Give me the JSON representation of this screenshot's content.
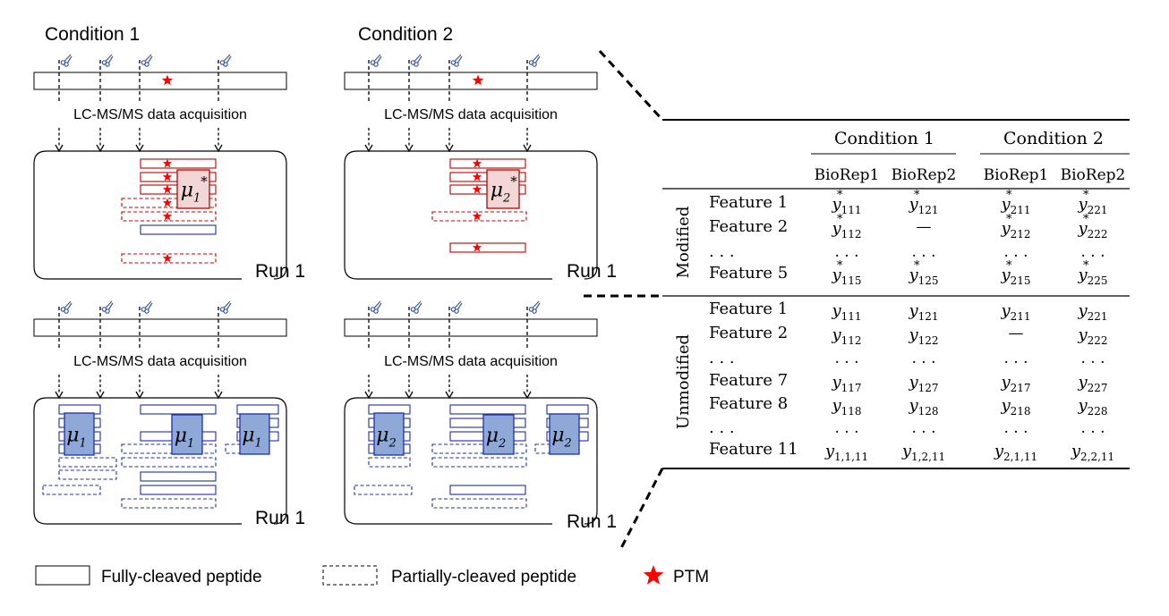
{
  "panels": {
    "cond1_top": {
      "title": "Condition 1",
      "acq": "LC-MS/MS data acquisition",
      "run": "Run 1",
      "mu": "μ",
      "sub": "1",
      "star": "*"
    },
    "cond2_top": {
      "title": "Condition 2",
      "acq": "LC-MS/MS data acquisition",
      "run": "Run 1",
      "mu": "μ",
      "sub": "2",
      "star": "*"
    },
    "cond1_bot": {
      "acq": "LC-MS/MS data acquisition",
      "run": "Run 1",
      "mu": "μ",
      "sub": "1"
    },
    "cond2_bot": {
      "acq": "LC-MS/MS data acquisition",
      "run": "Run 1",
      "mu": "μ",
      "sub": "2"
    }
  },
  "table": {
    "conditions": [
      "Condition 1",
      "Condition 2"
    ],
    "bioreps": [
      "BioRep1",
      "BioRep2",
      "BioRep1",
      "BioRep2"
    ],
    "groups": [
      {
        "label": "Modified",
        "rows": [
          {
            "feature": "Feature 1",
            "cells": [
              {
                "b": "y",
                "s": "111",
                "st": "*"
              },
              {
                "b": "y",
                "s": "121",
                "st": "*"
              },
              {
                "b": "y",
                "s": "211",
                "st": "*"
              },
              {
                "b": "y",
                "s": "221",
                "st": "*"
              }
            ]
          },
          {
            "feature": "Feature 2",
            "cells": [
              {
                "b": "y",
                "s": "112",
                "st": "*"
              },
              {
                "t": "—"
              },
              {
                "b": "y",
                "s": "212",
                "st": "*"
              },
              {
                "b": "y",
                "s": "222",
                "st": "*"
              }
            ]
          },
          {
            "feature": ". . .",
            "cells": [
              {
                "t": ". . ."
              },
              {
                "t": ". . ."
              },
              {
                "t": ". . ."
              },
              {
                "t": ". . ."
              }
            ]
          },
          {
            "feature": "Feature 5",
            "cells": [
              {
                "b": "y",
                "s": "115",
                "st": "*"
              },
              {
                "b": "y",
                "s": "125",
                "st": "*"
              },
              {
                "b": "y",
                "s": "215",
                "st": "*"
              },
              {
                "b": "y",
                "s": "225",
                "st": "*"
              }
            ]
          }
        ]
      },
      {
        "label": "Unmodified",
        "rows": [
          {
            "feature": "Feature 1",
            "cells": [
              {
                "b": "y",
                "s": "111"
              },
              {
                "b": "y",
                "s": "121"
              },
              {
                "b": "y",
                "s": "211"
              },
              {
                "b": "y",
                "s": "221"
              }
            ]
          },
          {
            "feature": "Feature 2",
            "cells": [
              {
                "b": "y",
                "s": "112"
              },
              {
                "b": "y",
                "s": "122"
              },
              {
                "t": "—"
              },
              {
                "b": "y",
                "s": "222"
              }
            ]
          },
          {
            "feature": ". . .",
            "cells": [
              {
                "t": ". . ."
              },
              {
                "t": ". . ."
              },
              {
                "t": ". . ."
              },
              {
                "t": ". . ."
              }
            ]
          },
          {
            "feature": "Feature 7",
            "cells": [
              {
                "b": "y",
                "s": "117"
              },
              {
                "b": "y",
                "s": "127"
              },
              {
                "b": "y",
                "s": "217"
              },
              {
                "b": "y",
                "s": "227"
              }
            ]
          },
          {
            "feature": "Feature 8",
            "cells": [
              {
                "b": "y",
                "s": "118"
              },
              {
                "b": "y",
                "s": "128"
              },
              {
                "b": "y",
                "s": "218"
              },
              {
                "b": "y",
                "s": "228"
              }
            ]
          },
          {
            "feature": ". . .",
            "cells": [
              {
                "t": ". . ."
              },
              {
                "t": ". . ."
              },
              {
                "t": ". . ."
              },
              {
                "t": ". . ."
              }
            ]
          },
          {
            "feature": "Feature 11",
            "cells": [
              {
                "b": "y",
                "s": "1,1,11"
              },
              {
                "b": "y",
                "s": "1,2,11"
              },
              {
                "b": "y",
                "s": "2,1,11"
              },
              {
                "b": "y",
                "s": "2,2,11"
              }
            ]
          }
        ]
      }
    ]
  },
  "legend": {
    "full": "Fully-cleaved peptide",
    "partial": "Partially-cleaved peptide",
    "ptm": "PTM"
  },
  "colors": {
    "modified": "#c00000",
    "modified_fill": "#f3d6d6",
    "unmodified": "#1f2fa8",
    "unmodified_fill": "#8ea9d8",
    "star": "#ff0000",
    "scissors": "#3a5a9a"
  },
  "icons": [
    "scissors-icon",
    "star-icon",
    "down-arrow-icon"
  ]
}
